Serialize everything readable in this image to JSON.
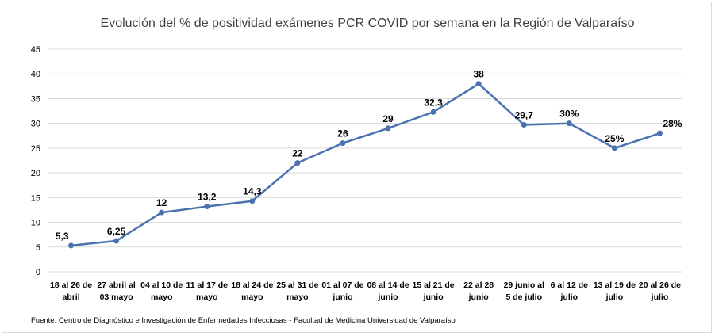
{
  "chart_data": {
    "type": "line",
    "title": "Evolución del % de positividad exámenes PCR COVID por semana en la Región de Valparaíso",
    "xlabel": "",
    "ylabel": "",
    "ylim": [
      0,
      45
    ],
    "yticks": [
      0,
      5,
      10,
      15,
      20,
      25,
      30,
      35,
      40,
      45
    ],
    "grid": true,
    "legend": "none",
    "categories": [
      [
        "18 al 26 de",
        "abril"
      ],
      [
        "27 abril al",
        "03 mayo"
      ],
      [
        "04 al 10 de",
        "mayo"
      ],
      [
        "11 al 17 de",
        "mayo"
      ],
      [
        "18 al 24 de",
        "mayo"
      ],
      [
        "25 al 31 de",
        "mayo"
      ],
      [
        "01 al 07 de",
        "junio"
      ],
      [
        "08 al 14 de",
        "junio"
      ],
      [
        "15 al 21 de",
        "junio"
      ],
      [
        "22 al 28",
        "junio"
      ],
      [
        "29 junio al",
        "5 de  julio"
      ],
      [
        "6 al 12 de",
        "julio"
      ],
      [
        "13 al 19 de",
        "julio"
      ],
      [
        "20 al 26 de",
        "julio"
      ]
    ],
    "series": [
      {
        "values": [
          5.3,
          6.25,
          12,
          13.2,
          14.3,
          22,
          26,
          29,
          32.3,
          38,
          29.7,
          30,
          25,
          28
        ],
        "labels": [
          "5,3",
          "6,25",
          "12",
          "13,2",
          "14,3",
          "22",
          "26",
          "29",
          "32,3",
          "38",
          "29,7",
          "30%",
          "25%",
          "28%"
        ],
        "color": "#4a72b0"
      }
    ],
    "source": "Fuente: Centro de Diagnóstico e Investigación de Enfermedades Infecciosas - Facultad de Medicina Universidad de Valparaíso"
  }
}
